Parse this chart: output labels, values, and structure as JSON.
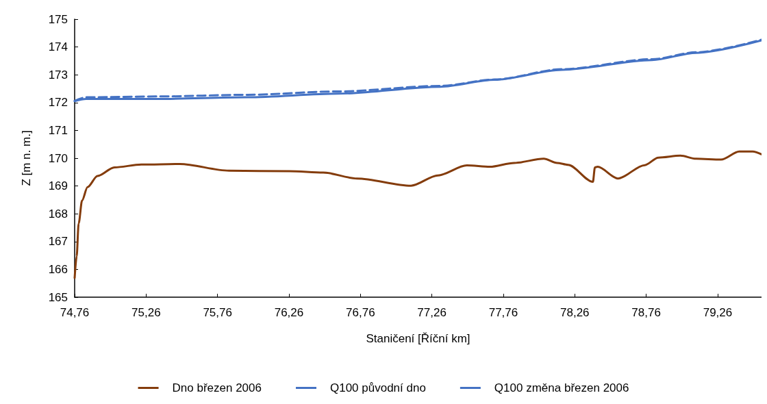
{
  "chart_data": {
    "type": "line",
    "xlabel": "Staničení [Říční km]",
    "ylabel": "Z [m n. m.]",
    "xlim": [
      74.76,
      79.567
    ],
    "xticks": [
      {
        "value": 74.76,
        "label": "74,76"
      },
      {
        "value": 75.26,
        "label": "75,26"
      },
      {
        "value": 75.76,
        "label": "75,76"
      },
      {
        "value": 76.26,
        "label": "76,26"
      },
      {
        "value": 76.76,
        "label": "76,76"
      },
      {
        "value": 77.26,
        "label": "77,26"
      },
      {
        "value": 77.76,
        "label": "77,76"
      },
      {
        "value": 78.26,
        "label": "78,26"
      },
      {
        "value": 78.76,
        "label": "78,76"
      },
      {
        "value": 79.26,
        "label": "79,26"
      }
    ],
    "ylim": [
      165,
      175
    ],
    "yticks": [
      165,
      166,
      167,
      168,
      169,
      170,
      171,
      172,
      173,
      174,
      175
    ],
    "grid": false,
    "legend": "bottom",
    "marker": "none",
    "series": [
      {
        "name": "Dno březen 2006",
        "color": "#843c0c",
        "line_style": "solid",
        "x": [
          74.76,
          74.774,
          74.788,
          74.812,
          74.85,
          74.92,
          75.038,
          75.227,
          75.496,
          75.84,
          76.265,
          76.5,
          76.736,
          77.114,
          77.302,
          77.505,
          77.666,
          77.836,
          78.043,
          78.137,
          78.213,
          78.387,
          78.401,
          78.42,
          78.562,
          78.75,
          78.845,
          79.0,
          79.109,
          79.284,
          79.411,
          79.505,
          79.567
        ],
        "values": [
          165.69,
          166.47,
          167.65,
          168.48,
          168.96,
          169.36,
          169.67,
          169.77,
          169.79,
          169.55,
          169.53,
          169.48,
          169.27,
          169.01,
          169.38,
          169.74,
          169.69,
          169.83,
          169.98,
          169.83,
          169.76,
          169.15,
          169.67,
          169.69,
          169.27,
          169.75,
          170.02,
          170.09,
          169.98,
          169.95,
          170.24,
          170.24,
          170.14
        ]
      },
      {
        "name": "Q100 původní dno",
        "color": "#4472c4",
        "line_style": "dashed",
        "x": [
          74.76,
          74.84,
          75.34,
          75.97,
          76.6,
          77.32,
          77.7,
          78.17,
          78.8,
          79.11,
          79.567
        ],
        "values": [
          172.06,
          172.19,
          172.22,
          172.28,
          172.4,
          172.6,
          172.83,
          173.2,
          173.56,
          173.81,
          174.26
        ]
      },
      {
        "name": "Q100 změna březen 2006",
        "color": "#4472c4",
        "line_style": "solid",
        "x": [
          74.76,
          74.84,
          75.34,
          75.97,
          76.6,
          77.32,
          77.7,
          78.17,
          78.8,
          79.11,
          79.567
        ],
        "values": [
          172.05,
          172.13,
          172.13,
          172.19,
          172.32,
          172.57,
          172.82,
          173.18,
          173.53,
          173.79,
          174.24
        ]
      }
    ]
  }
}
